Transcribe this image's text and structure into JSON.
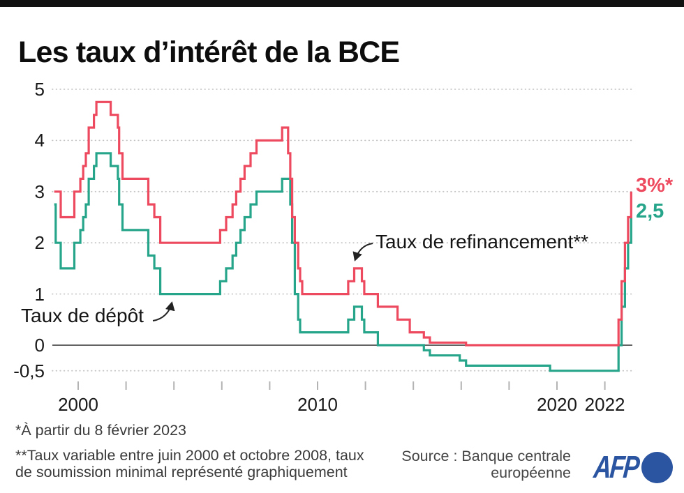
{
  "title": "Les taux d’intérêt de la BCE",
  "chart_data": {
    "type": "line",
    "step": true,
    "title": "Les taux d’intérêt de la BCE",
    "xlabel": "",
    "ylabel": "",
    "x_range": [
      1998.95,
      2023.3
    ],
    "ylim": [
      -0.5,
      5
    ],
    "grid": "dotted horizontal",
    "grid_color": "#c6c6c6",
    "zero_line_color": "#4d4d4d",
    "tick_color": "#b3b3b3",
    "y_ticks": [
      {
        "label": "5",
        "value": 5
      },
      {
        "label": "4",
        "value": 4
      },
      {
        "label": "3",
        "value": 3
      },
      {
        "label": "2",
        "value": 2
      },
      {
        "label": "1",
        "value": 1
      },
      {
        "label": "0",
        "value": 0
      },
      {
        "label": "-0,5",
        "value": -0.5
      }
    ],
    "x_tick_years": [
      2000,
      2002,
      2004,
      2006,
      2008,
      2010,
      2012,
      2014,
      2016,
      2018,
      2020,
      2022
    ],
    "x_axis_labels": [
      {
        "label": "2000",
        "year": 2000
      },
      {
        "label": "2010",
        "year": 2010
      },
      {
        "label": "2020",
        "year": 2020
      },
      {
        "label": "2022",
        "year": 2022
      }
    ],
    "series": [
      {
        "name": "Taux de refinancement**",
        "color": "#ee4a5f",
        "end_label": "3%*",
        "points": [
          [
            1999.0,
            3.0
          ],
          [
            1999.27,
            2.5
          ],
          [
            1999.84,
            3.0
          ],
          [
            2000.09,
            3.25
          ],
          [
            2000.21,
            3.5
          ],
          [
            2000.32,
            3.75
          ],
          [
            2000.44,
            4.25
          ],
          [
            2000.66,
            4.5
          ],
          [
            2000.76,
            4.75
          ],
          [
            2001.36,
            4.5
          ],
          [
            2001.66,
            4.25
          ],
          [
            2001.71,
            3.75
          ],
          [
            2001.85,
            3.25
          ],
          [
            2002.93,
            2.75
          ],
          [
            2003.18,
            2.5
          ],
          [
            2003.43,
            2.0
          ],
          [
            2005.93,
            2.25
          ],
          [
            2006.18,
            2.5
          ],
          [
            2006.45,
            2.75
          ],
          [
            2006.6,
            3.0
          ],
          [
            2006.78,
            3.25
          ],
          [
            2006.95,
            3.5
          ],
          [
            2007.2,
            3.75
          ],
          [
            2007.45,
            4.0
          ],
          [
            2008.52,
            4.25
          ],
          [
            2008.77,
            3.75
          ],
          [
            2008.86,
            3.25
          ],
          [
            2008.94,
            2.5
          ],
          [
            2009.05,
            2.0
          ],
          [
            2009.19,
            1.5
          ],
          [
            2009.27,
            1.25
          ],
          [
            2009.36,
            1.0
          ],
          [
            2011.28,
            1.25
          ],
          [
            2011.53,
            1.5
          ],
          [
            2011.85,
            1.25
          ],
          [
            2011.95,
            1.0
          ],
          [
            2012.52,
            0.75
          ],
          [
            2013.34,
            0.5
          ],
          [
            2013.85,
            0.25
          ],
          [
            2014.44,
            0.15
          ],
          [
            2014.69,
            0.05
          ],
          [
            2016.2,
            0.0
          ],
          [
            2022.57,
            0.5
          ],
          [
            2022.7,
            1.25
          ],
          [
            2022.84,
            2.0
          ],
          [
            2022.97,
            2.5
          ],
          [
            2023.1,
            3.0
          ]
        ]
      },
      {
        "name": "Taux de dépôt",
        "color": "#27a58b",
        "end_label": "2,5",
        "points": [
          [
            1999.0,
            2.75
          ],
          [
            1999.06,
            2.0
          ],
          [
            1999.27,
            1.5
          ],
          [
            1999.84,
            2.0
          ],
          [
            2000.09,
            2.25
          ],
          [
            2000.21,
            2.5
          ],
          [
            2000.32,
            2.75
          ],
          [
            2000.44,
            3.25
          ],
          [
            2000.66,
            3.5
          ],
          [
            2000.76,
            3.75
          ],
          [
            2001.36,
            3.5
          ],
          [
            2001.66,
            3.25
          ],
          [
            2001.71,
            2.75
          ],
          [
            2001.85,
            2.25
          ],
          [
            2002.93,
            1.75
          ],
          [
            2003.18,
            1.5
          ],
          [
            2003.43,
            1.0
          ],
          [
            2005.93,
            1.25
          ],
          [
            2006.18,
            1.5
          ],
          [
            2006.45,
            1.75
          ],
          [
            2006.6,
            2.0
          ],
          [
            2006.78,
            2.25
          ],
          [
            2006.95,
            2.5
          ],
          [
            2007.2,
            2.75
          ],
          [
            2007.45,
            3.0
          ],
          [
            2008.52,
            3.25
          ],
          [
            2008.86,
            2.75
          ],
          [
            2008.94,
            2.0
          ],
          [
            2009.05,
            1.0
          ],
          [
            2009.19,
            0.5
          ],
          [
            2009.27,
            0.25
          ],
          [
            2011.28,
            0.5
          ],
          [
            2011.53,
            0.75
          ],
          [
            2011.85,
            0.5
          ],
          [
            2011.95,
            0.25
          ],
          [
            2012.52,
            0.0
          ],
          [
            2014.44,
            -0.1
          ],
          [
            2014.69,
            -0.2
          ],
          [
            2015.94,
            -0.3
          ],
          [
            2016.2,
            -0.4
          ],
          [
            2019.71,
            -0.5
          ],
          [
            2022.57,
            0.0
          ],
          [
            2022.7,
            0.75
          ],
          [
            2022.84,
            1.5
          ],
          [
            2022.97,
            2.0
          ],
          [
            2023.1,
            2.5
          ]
        ]
      }
    ],
    "legend_position": "annotations on chart"
  },
  "footnotes": {
    "line1": "*À partir du 8 février 2023",
    "line2": "**Taux variable entre juin 2000 et octobre 2008, taux de soumission minimal représenté graphiquement"
  },
  "source": {
    "line1": "Source : Banque centrale",
    "line2": "européenne"
  },
  "logo": {
    "text": "AFP",
    "color": "#2b55a1"
  }
}
